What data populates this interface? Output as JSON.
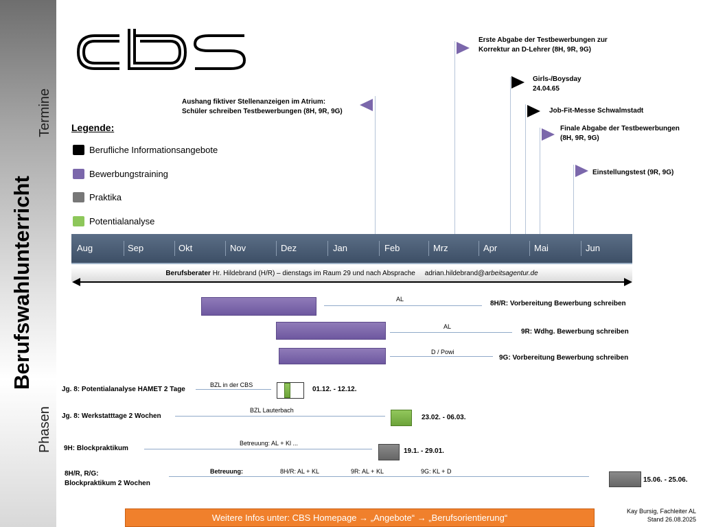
{
  "logo": {
    "text": "cbs"
  },
  "side": {
    "main_title": "Berufswahlunterricht",
    "termine": "Termine",
    "phasen": "Phasen"
  },
  "legend": {
    "title": "Legende:",
    "items": [
      {
        "label": "Berufliche Informationsangebote",
        "color": "#000000"
      },
      {
        "label": "Bewerbungstraining",
        "color": "#7b67ab"
      },
      {
        "label": "Praktika",
        "color": "#777777"
      },
      {
        "label": "Potentialanalyse",
        "color": "#8dc75a"
      }
    ]
  },
  "callouts": [
    {
      "line1": "Aushang fiktiver Stellenanzeigen im Atrium:",
      "line2": "Schüler schreiben Testbewerbungen (8H, 9R, 9G)",
      "color": "#7b67ab"
    },
    {
      "line1": "Erste Abgabe der Testbewerbungen zur",
      "line2": "Korrektur an D-Lehrer (8H, 9R, 9G)",
      "color": "#7b67ab"
    },
    {
      "line1": "Girls-/Boysday",
      "line2": "24.04.65",
      "color": "#000000"
    },
    {
      "line1": "Job-Fit-Messe Schwalmstadt",
      "line2": "",
      "color": "#000000"
    },
    {
      "line1": "Finale Abgabe der Testbewerbungen",
      "line2": "(8H, 9R, 9G)",
      "color": "#7b67ab"
    },
    {
      "line1": "Einstellungstest (9R, 9G)",
      "line2": "",
      "color": "#7b67ab"
    }
  ],
  "timeline": {
    "months": [
      "Aug",
      "Sep",
      "Okt",
      "Nov",
      "Dez",
      "Jan",
      "Feb",
      "Mrz",
      "Apr",
      "Mai",
      "Jun"
    ]
  },
  "berater": {
    "label": "Berufsberater",
    "text": " Hr. Hildebrand (H/R) – dienstags im Raum 29 und nach Absprache",
    "email_user": "adrian.hildebrand@",
    "email_domain": "arbeitsagentur.de"
  },
  "phases": {
    "bewerbung": [
      {
        "line_label": "AL",
        "label": "8H/R: Vorbereitung Bewerbung schreiben"
      },
      {
        "line_label": "AL",
        "label": "9R: Wdhg. Bewerbung schreiben"
      },
      {
        "line_label": "D / Powi",
        "label": "9G: Vorbereitung Bewerbung schreiben"
      }
    ],
    "hamet": {
      "label": "Jg. 8: Potentialanalyse HAMET 2 Tage",
      "line_label": "BZL in der CBS",
      "dates": "01.12. - 12.12."
    },
    "werkstatt": {
      "label": "Jg. 8: Werkstatttage 2 Wochen",
      "line_label": "BZL Lauterbach",
      "dates": "23.02. - 06.03."
    },
    "block9h": {
      "label": "9H: Blockpraktikum",
      "line_label": "Betreuung: AL + Kl ...",
      "dates": "19.1. - 29.01."
    },
    "block8": {
      "label_line1": "8H/R,  R/G:",
      "label_line2": "Blockpraktikum 2 Wochen",
      "betreuung": "Betreuung:",
      "b1": "8H/R: AL + KL",
      "b2": "9R: AL + KL",
      "b3": "9G: KL + D",
      "dates": "15.06. - 25.06."
    }
  },
  "footer": {
    "text": "Weitere Infos unter: CBS Homepage → „Angebote“ → „Berufsorientierung“"
  },
  "credit": {
    "line1": "Kay Bursig, Fachleiter AL",
    "line2": "Stand 26.08.2025"
  }
}
